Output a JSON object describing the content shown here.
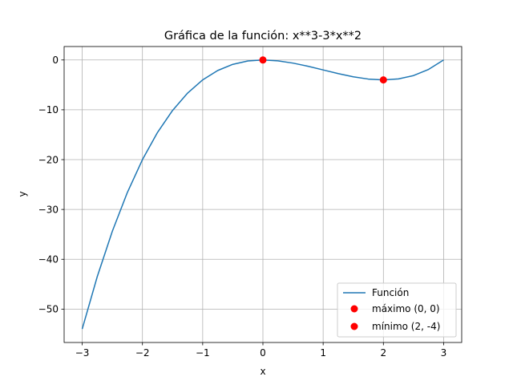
{
  "chart_data": {
    "type": "line",
    "title": "Gráfica de la función: x**3-3*x**2",
    "xlabel": "x",
    "ylabel": "y",
    "xlim": [
      -3.3,
      3.3
    ],
    "ylim": [
      -56.7,
      2.7
    ],
    "xticks": [
      -3,
      -2,
      -1,
      0,
      1,
      2,
      3
    ],
    "yticks": [
      0,
      -10,
      -20,
      -30,
      -40,
      -50
    ],
    "grid": true,
    "legend_position": "lower-right",
    "series": [
      {
        "name": "Función",
        "kind": "line",
        "color": "#1f77b4",
        "x": [
          -3.0,
          -2.75,
          -2.5,
          -2.25,
          -2.0,
          -1.75,
          -1.5,
          -1.25,
          -1.0,
          -0.75,
          -0.5,
          -0.25,
          0.0,
          0.25,
          0.5,
          0.75,
          1.0,
          1.25,
          1.5,
          1.75,
          2.0,
          2.25,
          2.5,
          2.75,
          3.0
        ],
        "y": [
          -54.0,
          -43.48,
          -34.38,
          -26.58,
          -20.0,
          -14.55,
          -10.13,
          -6.64,
          -4.0,
          -2.11,
          -0.88,
          -0.2,
          0.0,
          -0.17,
          -0.63,
          -1.27,
          -2.0,
          -2.73,
          -3.38,
          -3.83,
          -4.0,
          -3.8,
          -3.13,
          -1.89,
          0.0
        ]
      },
      {
        "name": "máximo (0, 0)",
        "kind": "scatter",
        "color": "#ff0000",
        "x": [
          0
        ],
        "y": [
          0
        ]
      },
      {
        "name": "mínimo (2, -4)",
        "kind": "scatter",
        "color": "#ff0000",
        "x": [
          2
        ],
        "y": [
          -4
        ]
      }
    ]
  }
}
